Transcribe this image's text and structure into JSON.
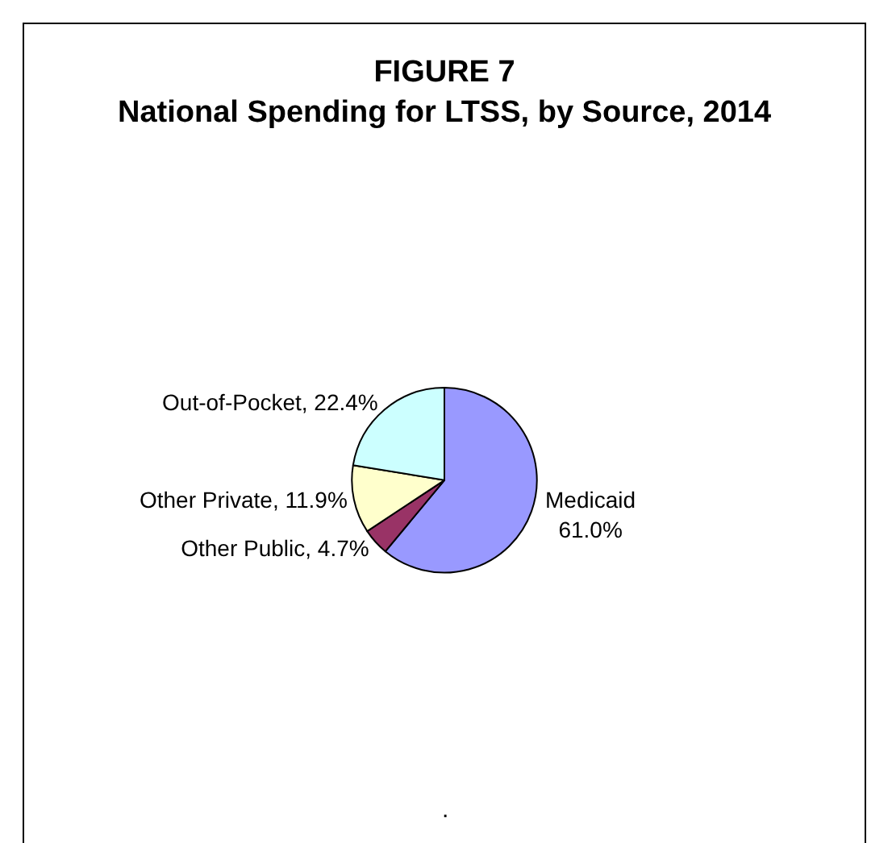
{
  "chart_data": {
    "type": "pie",
    "title": "FIGURE 7",
    "subtitle": "National Spending for LTSS, by Source, 2014",
    "categories": [
      "Medicaid",
      "Other Public",
      "Other Private",
      "Out-of-Pocket"
    ],
    "values": [
      61.0,
      4.7,
      11.9,
      22.4
    ],
    "value_labels": [
      "61.0%",
      "4.7%",
      "11.9%",
      "22.4%"
    ],
    "colors": [
      "#9999ff",
      "#993366",
      "#ffffcc",
      "#ccffff"
    ],
    "legend": false,
    "annotations": [
      "."
    ]
  }
}
